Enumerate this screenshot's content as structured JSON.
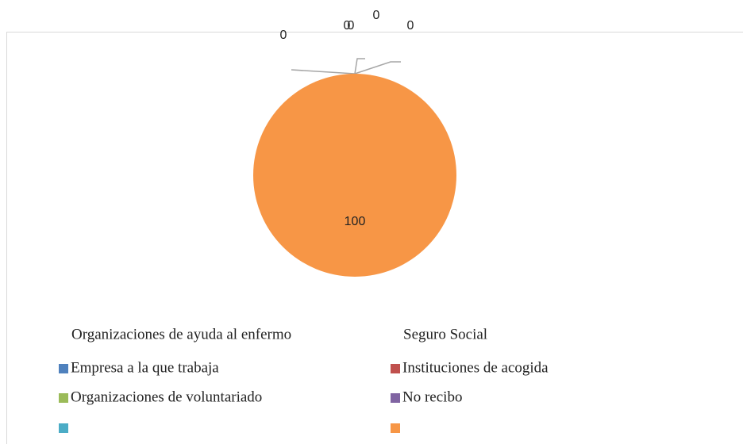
{
  "chart_data": {
    "type": "pie",
    "categories": [
      "Empresa a la que trabaja",
      "Instituciones de acogida",
      "Organizaciones de voluntariado",
      "No recibo",
      "Organizaciones de ayuda al enfermo",
      "Seguro Social"
    ],
    "values": [
      0,
      0,
      0,
      0,
      0,
      100
    ],
    "colors": [
      "#4f81bd",
      "#c0504d",
      "#9bbb59",
      "#8064a2",
      "#4bacc6",
      "#f79646"
    ],
    "legend": "bottom"
  }
}
